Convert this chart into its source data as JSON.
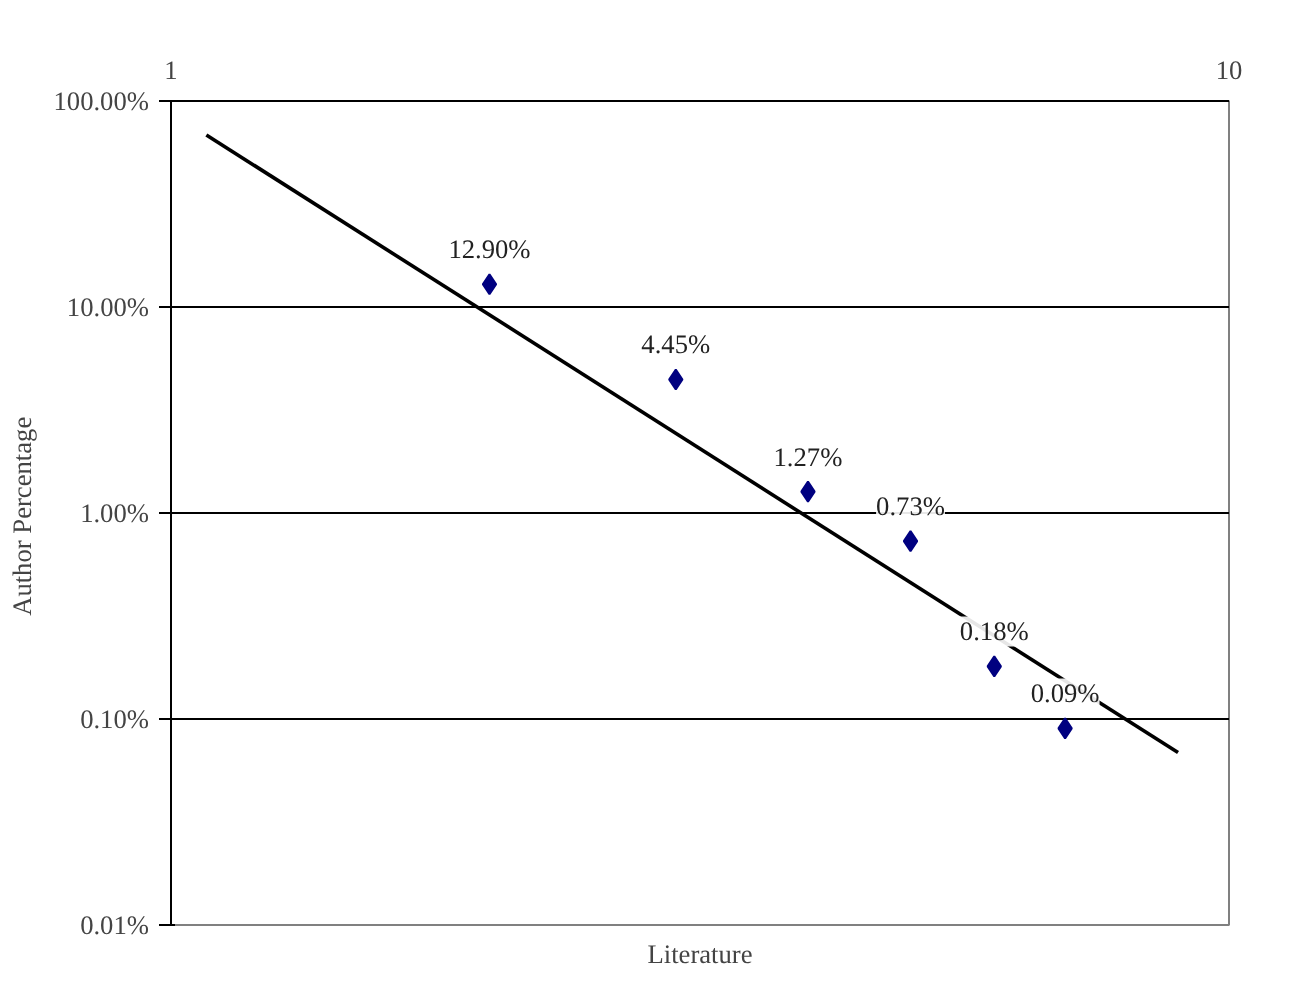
{
  "chart_data": {
    "type": "scatter",
    "xlabel": "Literature",
    "ylabel": "Author  Percentage",
    "log": "xy",
    "grid": "y",
    "marker": "diamond",
    "xlim": [
      1,
      10
    ],
    "xticks": [
      1,
      10
    ],
    "ylim": [
      0.01,
      100
    ],
    "yticks": [
      {
        "value": 0.01,
        "label": "0.01%"
      },
      {
        "value": 0.1,
        "label": "0.10%"
      },
      {
        "value": 1,
        "label": "1.00%"
      },
      {
        "value": 10,
        "label": "10.00%"
      },
      {
        "value": 100,
        "label": "100.00%"
      }
    ],
    "series": [
      {
        "color": "#000080",
        "x": [
          2,
          3,
          4,
          5,
          6,
          7
        ],
        "values": [
          12.9,
          4.45,
          1.27,
          0.73,
          0.18,
          0.09
        ],
        "value_labels": [
          "12.90%",
          "4.45%",
          "1.27%",
          "0.73%",
          "0.18%",
          "0.09%"
        ]
      },
      {
        "type": "line",
        "color": "#000000",
        "x": [
          1.08,
          8.95
        ],
        "values": [
          68.4,
          0.0687
        ],
        "marker": "none"
      }
    ]
  }
}
